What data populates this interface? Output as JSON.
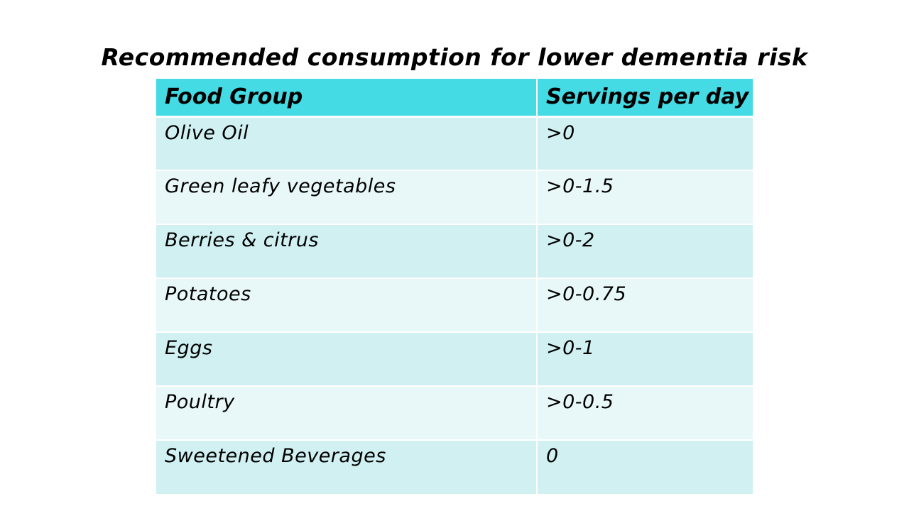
{
  "slide": {
    "title": "Recommended consumption for lower dementia risk"
  },
  "table": {
    "headers": [
      "Food Group",
      "Servings per day"
    ],
    "rows": [
      {
        "food_group": "Olive Oil",
        "servings": ">0"
      },
      {
        "food_group": "Green leafy vegetables",
        "servings": ">0-1.5"
      },
      {
        "food_group": "Berries & citrus",
        "servings": ">0-2"
      },
      {
        "food_group": "Potatoes",
        "servings": ">0-0.75"
      },
      {
        "food_group": "Eggs",
        "servings": ">0-1"
      },
      {
        "food_group": "Poultry",
        "servings": ">0-0.5"
      },
      {
        "food_group": "Sweetened Beverages",
        "servings": "0"
      }
    ]
  },
  "colors": {
    "header_bg": "#44dbe4",
    "row_odd_bg": "#d0f0f2",
    "row_even_bg": "#e8f7f8"
  }
}
